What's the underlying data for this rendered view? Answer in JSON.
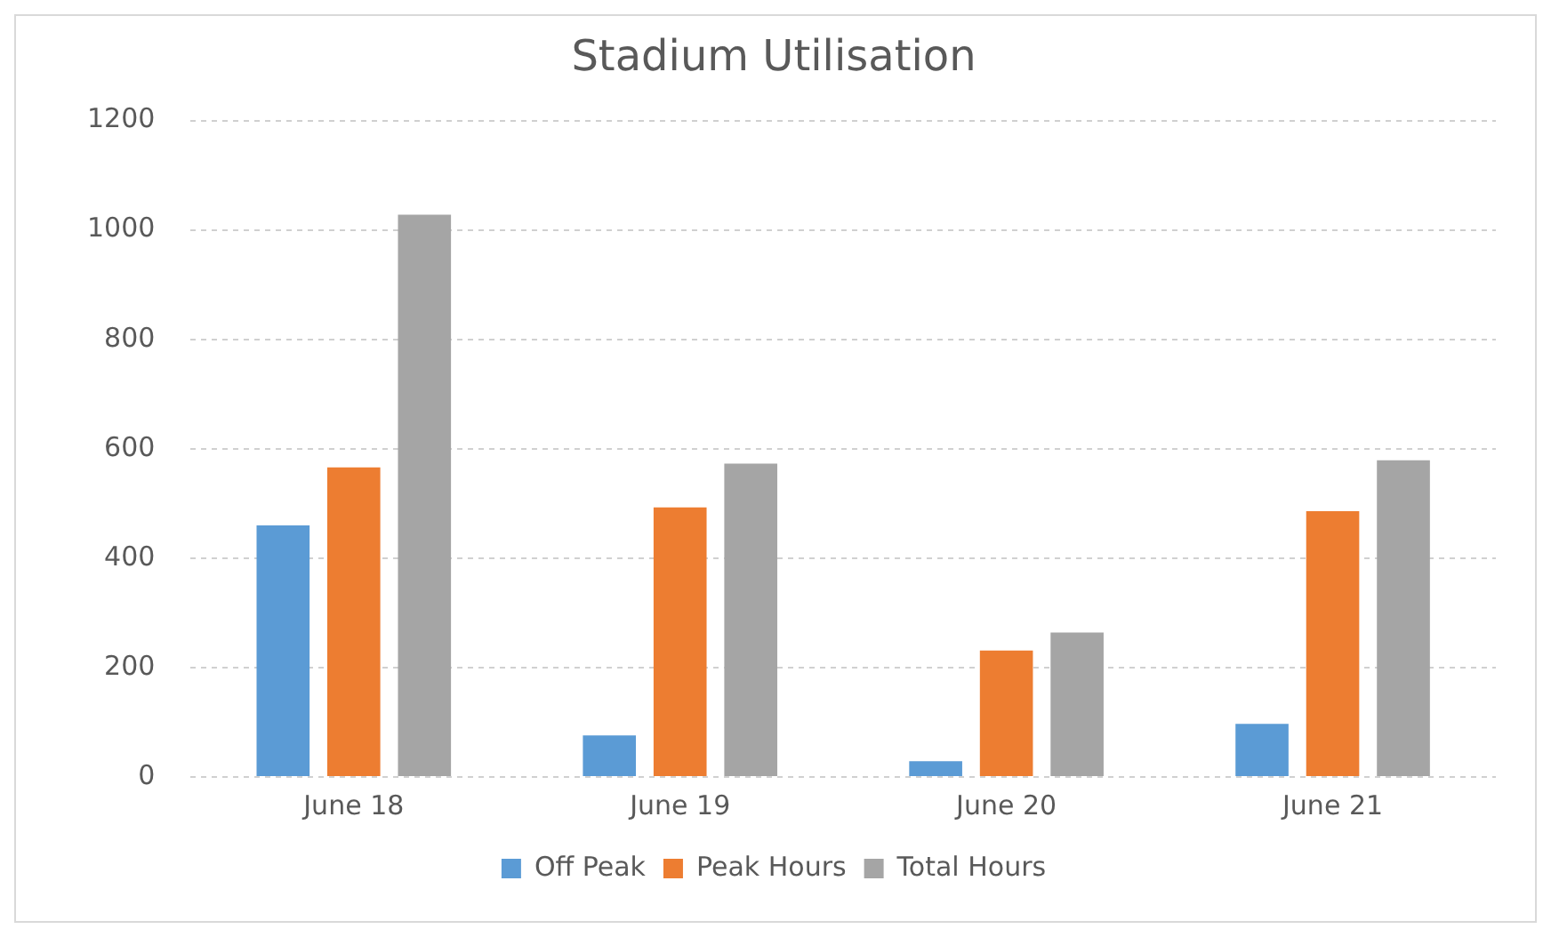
{
  "chart_data": {
    "type": "bar",
    "title": "Stadium Utilisation",
    "categories": [
      "June 18",
      "June 19",
      "June 20",
      "June 21"
    ],
    "series": [
      {
        "name": "Off Peak",
        "color": "#5b9bd5",
        "values": [
          460,
          76,
          29,
          97
        ]
      },
      {
        "name": "Peak Hours",
        "color": "#ed7d31",
        "values": [
          566,
          493,
          231,
          486
        ]
      },
      {
        "name": "Total Hours",
        "color": "#a5a5a5",
        "values": [
          1028,
          573,
          264,
          579
        ]
      }
    ],
    "ylim": [
      0,
      1200
    ],
    "yticks": [
      0,
      200,
      400,
      600,
      800,
      1000,
      1200
    ],
    "grid": "y",
    "legend": "bottom"
  }
}
